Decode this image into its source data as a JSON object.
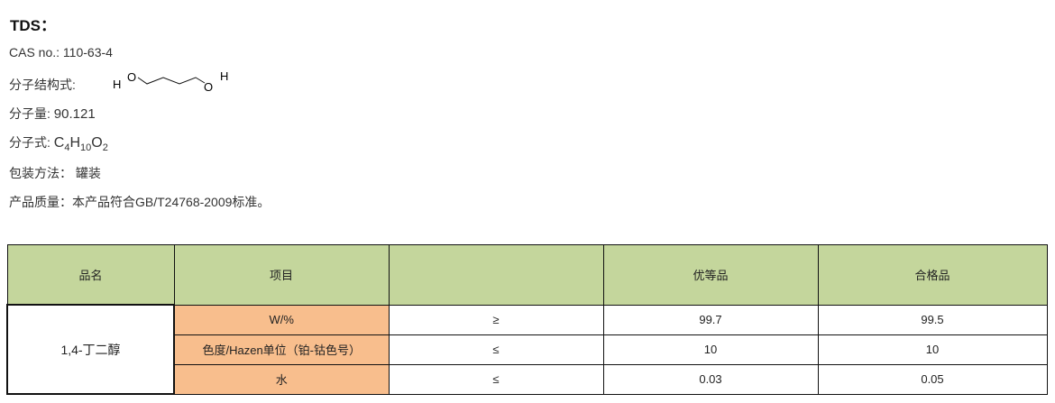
{
  "title": "TDS：",
  "cas": {
    "label": "CAS no.:",
    "value": "110-63-4"
  },
  "structure": {
    "label": "分子结构式:",
    "atoms": [
      "H",
      "O",
      "O",
      "H"
    ]
  },
  "mw": {
    "label": "分子量:",
    "value": "90.121"
  },
  "formula": {
    "label": "分子式:",
    "parts": [
      "C",
      "4",
      "H",
      "10",
      "O",
      "2"
    ]
  },
  "packaging": {
    "label": "包装方法：",
    "value": "罐装"
  },
  "quality": {
    "label": "产品质量：",
    "value": "本产品符合GB/T24768-2009标准。"
  },
  "table": {
    "headers": [
      "品名",
      "项目",
      "",
      "优等品",
      "合格品"
    ],
    "product": "1,4-丁二醇",
    "rows": [
      {
        "item": "W/%",
        "op": "≥",
        "superior": "99.7",
        "qualified": "99.5"
      },
      {
        "item": "色度/Hazen单位（铂-钴色号）",
        "op": "≤",
        "superior": "10",
        "qualified": "10"
      },
      {
        "item": "水",
        "op": "≤",
        "superior": "0.03",
        "qualified": "0.05"
      }
    ],
    "colors": {
      "header": "#c4d69c",
      "item": "#f8be8d"
    }
  }
}
